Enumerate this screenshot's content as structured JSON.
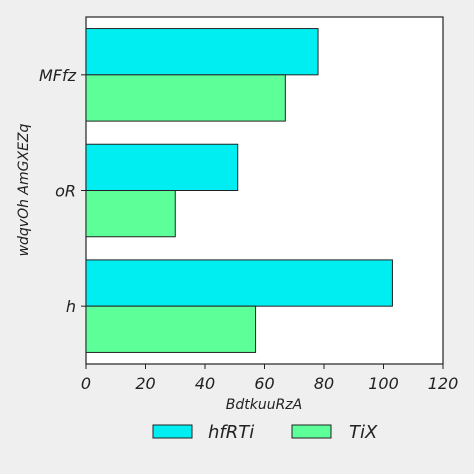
{
  "chart_data": {
    "type": "bar",
    "orientation": "horizontal",
    "categories": [
      "MFfz",
      "oR",
      "h"
    ],
    "series": [
      {
        "name": "hfRTi",
        "color": "#00eef2",
        "values": [
          78,
          51,
          103
        ]
      },
      {
        "name": "TiX",
        "color": "#5dff98",
        "values": [
          67,
          30,
          57
        ]
      }
    ],
    "xlabel": "BdtkuuRzA",
    "ylabel": "wdqvOh AmGXEZq",
    "xlim": [
      0,
      120
    ],
    "xticks": [
      0,
      20,
      40,
      60,
      80,
      100,
      120
    ],
    "grid": false,
    "legend_position": "bottom-center"
  }
}
